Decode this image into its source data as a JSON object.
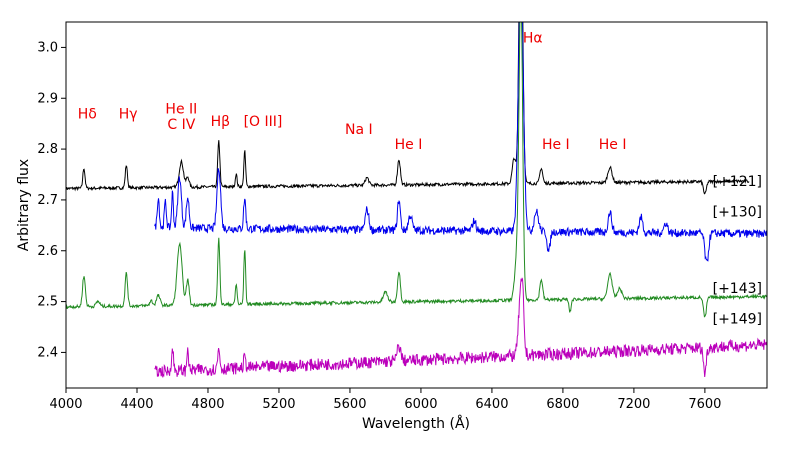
{
  "chart_data": {
    "type": "line",
    "title": "",
    "xlabel": "Wavelength (Å)",
    "ylabel": "Arbitrary flux",
    "xlim": [
      4000,
      7950
    ],
    "ylim": [
      2.33,
      3.05
    ],
    "x_ticks": [
      4000,
      4400,
      4800,
      5200,
      5600,
      6000,
      6400,
      6800,
      7200,
      7600
    ],
    "y_ticks": [
      2.4,
      2.5,
      2.6,
      2.7,
      2.8,
      2.9,
      3.0
    ],
    "grid": false,
    "series": [
      {
        "name": "[+121]",
        "color": "#000000",
        "x_start": 4000,
        "x_end": 7850,
        "baseline": 2.73,
        "slope": 3.75e-06,
        "noise": 0.003,
        "label_y": 2.735,
        "peaks": [
          {
            "w": 4101,
            "h": 0.04,
            "s": 6
          },
          {
            "w": 4340,
            "h": 0.045,
            "s": 6
          },
          {
            "w": 4650,
            "h": 0.05,
            "s": 12
          },
          {
            "w": 4686,
            "h": 0.02,
            "s": 8
          },
          {
            "w": 4861,
            "h": 0.09,
            "s": 6
          },
          {
            "w": 4959,
            "h": 0.025,
            "s": 5
          },
          {
            "w": 5007,
            "h": 0.07,
            "s": 5
          },
          {
            "w": 5696,
            "h": 0.015,
            "s": 10
          },
          {
            "w": 5876,
            "h": 0.05,
            "s": 8
          },
          {
            "w": 6525,
            "h": 0.05,
            "s": 10
          },
          {
            "w": 6563,
            "h": 0.6,
            "s": 10
          },
          {
            "w": 6678,
            "h": 0.03,
            "s": 8
          },
          {
            "w": 7065,
            "h": 0.03,
            "s": 12
          },
          {
            "w": 7600,
            "h": -0.025,
            "s": 8
          }
        ]
      },
      {
        "name": "[+130]",
        "color": "#0000ee",
        "x_start": 4500,
        "x_end": 7950,
        "baseline": 2.64,
        "slope": -3.5e-06,
        "noise": 0.008,
        "label_y": 2.675,
        "peaks": [
          {
            "w": 4520,
            "h": 0.06,
            "s": 6
          },
          {
            "w": 4560,
            "h": 0.05,
            "s": 6
          },
          {
            "w": 4600,
            "h": 0.07,
            "s": 5
          },
          {
            "w": 4640,
            "h": 0.1,
            "s": 10
          },
          {
            "w": 4686,
            "h": 0.06,
            "s": 8
          },
          {
            "w": 4861,
            "h": 0.12,
            "s": 10
          },
          {
            "w": 5007,
            "h": 0.06,
            "s": 6
          },
          {
            "w": 5696,
            "h": 0.04,
            "s": 10
          },
          {
            "w": 5876,
            "h": 0.06,
            "s": 8
          },
          {
            "w": 5940,
            "h": 0.03,
            "s": 10
          },
          {
            "w": 6300,
            "h": 0.02,
            "s": 10
          },
          {
            "w": 6563,
            "h": 0.5,
            "s": 14
          },
          {
            "w": 6650,
            "h": 0.04,
            "s": 12
          },
          {
            "w": 6720,
            "h": -0.04,
            "s": 8
          },
          {
            "w": 7065,
            "h": 0.04,
            "s": 10
          },
          {
            "w": 7240,
            "h": 0.03,
            "s": 10
          },
          {
            "w": 7380,
            "h": 0.02,
            "s": 10
          },
          {
            "w": 7610,
            "h": -0.06,
            "s": 10
          }
        ]
      },
      {
        "name": "[+143]",
        "color": "#228b22",
        "x_start": 4000,
        "x_end": 7950,
        "baseline": 2.5,
        "slope": 5.2e-06,
        "noise": 0.003,
        "label_y": 2.525,
        "peaks": [
          {
            "w": 4101,
            "h": 0.06,
            "s": 8
          },
          {
            "w": 4180,
            "h": 0.01,
            "s": 10
          },
          {
            "w": 4340,
            "h": 0.065,
            "s": 7
          },
          {
            "w": 4480,
            "h": 0.01,
            "s": 8
          },
          {
            "w": 4520,
            "h": 0.02,
            "s": 10
          },
          {
            "w": 4640,
            "h": 0.12,
            "s": 14
          },
          {
            "w": 4686,
            "h": 0.05,
            "s": 8
          },
          {
            "w": 4861,
            "h": 0.13,
            "s": 6
          },
          {
            "w": 4959,
            "h": 0.04,
            "s": 5
          },
          {
            "w": 5007,
            "h": 0.11,
            "s": 5
          },
          {
            "w": 5800,
            "h": 0.02,
            "s": 12
          },
          {
            "w": 5876,
            "h": 0.06,
            "s": 8
          },
          {
            "w": 6540,
            "h": 0.08,
            "s": 12
          },
          {
            "w": 6563,
            "h": 0.6,
            "s": 10
          },
          {
            "w": 6678,
            "h": 0.04,
            "s": 8
          },
          {
            "w": 6840,
            "h": -0.025,
            "s": 6
          },
          {
            "w": 7065,
            "h": 0.05,
            "s": 12
          },
          {
            "w": 7120,
            "h": 0.02,
            "s": 12
          },
          {
            "w": 7600,
            "h": -0.04,
            "s": 8
          }
        ]
      },
      {
        "name": "[+149]",
        "color": "#bb00bb",
        "x_start": 4500,
        "x_end": 7950,
        "baseline": 2.385,
        "slope": 1.55e-05,
        "noise": 0.012,
        "label_y": 2.465,
        "peaks": [
          {
            "w": 4600,
            "h": 0.04,
            "s": 6
          },
          {
            "w": 4686,
            "h": 0.05,
            "s": 4
          },
          {
            "w": 4861,
            "h": 0.04,
            "s": 6
          },
          {
            "w": 5007,
            "h": 0.02,
            "s": 6
          },
          {
            "w": 5876,
            "h": 0.03,
            "s": 10
          },
          {
            "w": 6563,
            "h": 0.13,
            "s": 12
          },
          {
            "w": 6575,
            "h": 0.05,
            "s": 6
          },
          {
            "w": 7600,
            "h": -0.05,
            "s": 8
          }
        ]
      }
    ],
    "line_labels": [
      {
        "text": "Hδ",
        "x": 4120,
        "y": 2.86
      },
      {
        "text": "Hγ",
        "x": 4350,
        "y": 2.86
      },
      {
        "text": "He II",
        "x": 4650,
        "y": 2.87
      },
      {
        "text": "C IV",
        "x": 4650,
        "y": 2.84
      },
      {
        "text": "Hβ",
        "x": 4870,
        "y": 2.845
      },
      {
        "text": "[O III]",
        "x": 5110,
        "y": 2.845
      },
      {
        "text": "Na I",
        "x": 5650,
        "y": 2.83
      },
      {
        "text": "He I",
        "x": 5930,
        "y": 2.8
      },
      {
        "text": "Hα",
        "x": 6630,
        "y": 3.01
      },
      {
        "text": "He I",
        "x": 6760,
        "y": 2.8
      },
      {
        "text": "He I",
        "x": 7080,
        "y": 2.8
      }
    ]
  }
}
